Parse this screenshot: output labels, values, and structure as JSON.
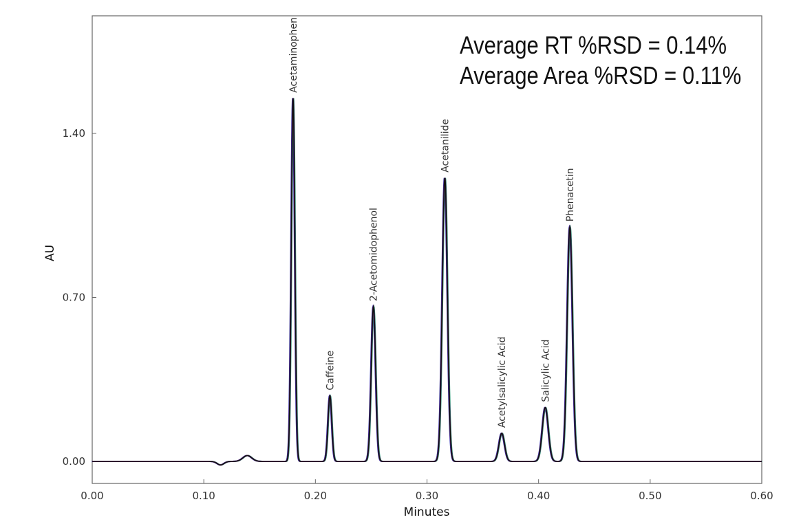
{
  "chart_data": {
    "type": "line",
    "xlabel": "Minutes",
    "ylabel": "AU",
    "xlim": [
      0.0,
      0.6
    ],
    "ylim": [
      -0.1,
      1.9
    ],
    "x_ticks": [
      0.0,
      0.1,
      0.2,
      0.3,
      0.4,
      0.5,
      0.6
    ],
    "x_tick_labels": [
      "0.00",
      "0.10",
      "0.20",
      "0.30",
      "0.40",
      "0.50",
      "0.60"
    ],
    "y_ticks": [
      0.0,
      0.7,
      1.4
    ],
    "y_tick_labels": [
      "0.00",
      "0.70",
      "1.40"
    ],
    "grid": false,
    "line_color": "#111111",
    "overlay_colors": [
      "#2a2aa0",
      "#1f8a6a",
      "#8a2a8a"
    ],
    "annotations": [
      "Average RT %RSD = 0.14%",
      "Average Area %RSD = 0.11%"
    ],
    "peaks": [
      {
        "name": "Acetaminophen",
        "rt": 0.18,
        "height": 1.55,
        "width": 0.0016
      },
      {
        "name": "Caffeine",
        "rt": 0.213,
        "height": 0.28,
        "width": 0.0017
      },
      {
        "name": "2-Acetomidophenol",
        "rt": 0.252,
        "height": 0.66,
        "width": 0.002
      },
      {
        "name": "Acetanilide",
        "rt": 0.316,
        "height": 1.21,
        "width": 0.0023
      },
      {
        "name": "Acetylsalicylic Acid",
        "rt": 0.367,
        "height": 0.12,
        "width": 0.0025
      },
      {
        "name": "Salicylic Acid",
        "rt": 0.406,
        "height": 0.23,
        "width": 0.0027
      },
      {
        "name": "Phenacetin",
        "rt": 0.428,
        "height": 1.0,
        "width": 0.0024
      }
    ],
    "baseline_features": [
      {
        "x": 0.115,
        "y": -0.015,
        "width": 0.003
      },
      {
        "x": 0.139,
        "y": 0.025,
        "width": 0.004
      }
    ]
  }
}
